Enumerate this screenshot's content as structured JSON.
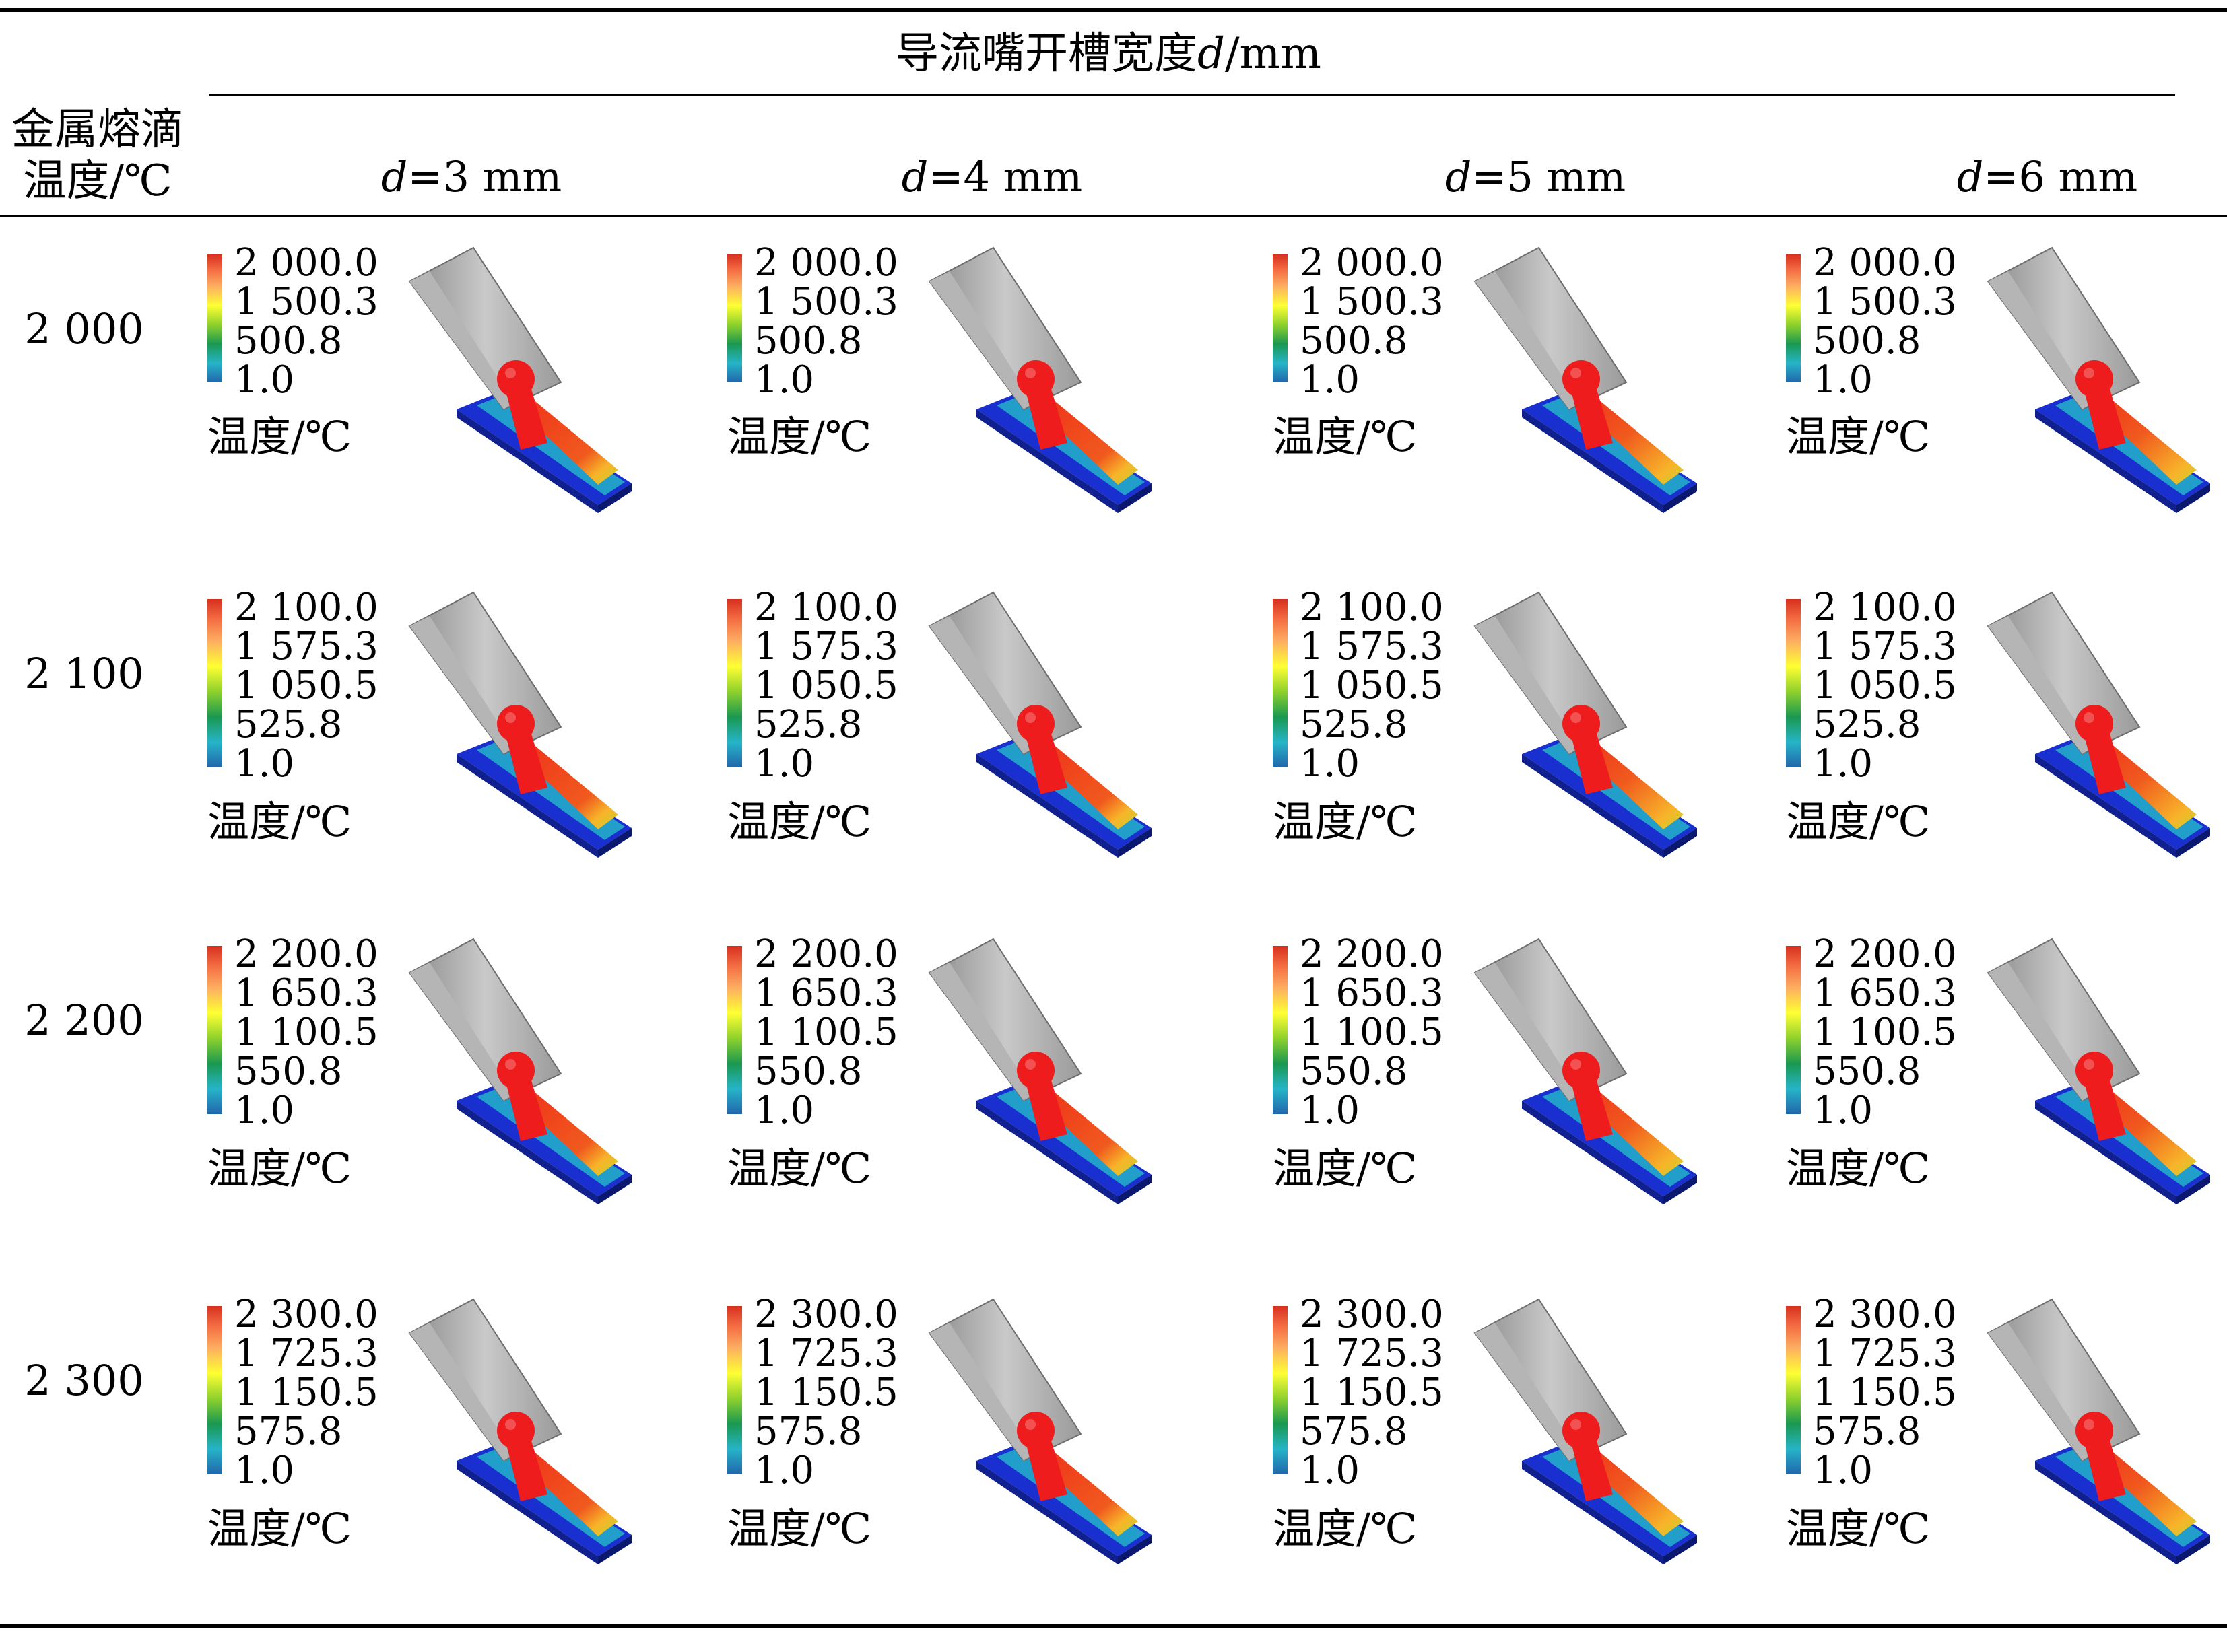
{
  "header": {
    "group_title": "导流嘴开槽宽度",
    "group_var": "d",
    "group_unit": "/mm",
    "row_title_line1": "金属熔滴",
    "row_title_line2": "温度/℃"
  },
  "columns": [
    {
      "var": "d",
      "label": "=3 mm"
    },
    {
      "var": "d",
      "label": "=4 mm"
    },
    {
      "var": "d",
      "label": "=5 mm"
    },
    {
      "var": "d",
      "label": "=6 mm"
    }
  ],
  "rows": [
    {
      "label": "2 000",
      "ticks": [
        "2 000.0",
        "1 500.3",
        "500.8",
        "1.0"
      ]
    },
    {
      "label": "2 100",
      "ticks": [
        "2 100.0",
        "1 575.3",
        "1 050.5",
        "525.8",
        "1.0"
      ]
    },
    {
      "label": "2 200",
      "ticks": [
        "2 200.0",
        "1 650.3",
        "1 100.5",
        "550.8",
        "1.0"
      ]
    },
    {
      "label": "2 300",
      "ticks": [
        "2 300.0",
        "1 725.3",
        "1 150.5",
        "575.8",
        "1.0"
      ]
    }
  ],
  "colorbar_unit": "温度/℃",
  "colors": {
    "nozzle": "#a6a6a6",
    "droplet": "#ee1c1c",
    "plate": "#1a2fd0"
  }
}
